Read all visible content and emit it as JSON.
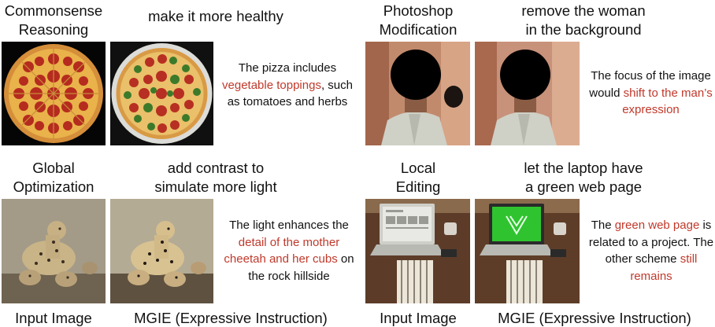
{
  "panels": [
    {
      "task": [
        "Commonsense",
        "Reasoning"
      ],
      "instruction": [
        "make it more healthy"
      ],
      "explanation": [
        "The pizza includes ",
        "vegetable toppings",
        ", such as tomatoes and herbs"
      ]
    },
    {
      "task": [
        "Photoshop",
        "Modification"
      ],
      "instruction": [
        "remove the woman",
        "in the background"
      ],
      "explanation": [
        "The focus of the image would ",
        "shift to the man’s expression",
        ""
      ]
    },
    {
      "task": [
        "Global",
        "Optimization"
      ],
      "instruction": [
        "add contrast to",
        "simulate more light"
      ],
      "explanation": [
        "The light enhances the ",
        "detail of the mother cheetah and her cubs",
        " on the rock hillside"
      ]
    },
    {
      "task": [
        "Local",
        "Editing"
      ],
      "instruction": [
        "let the laptop have",
        "a green web page"
      ],
      "explanation": [
        "The ",
        "green web page",
        " is related to a project. The other scheme ",
        "still remains",
        ""
      ]
    }
  ],
  "footer": {
    "input_label": "Input Image",
    "output_label": "MGIE (Expressive Instruction)"
  },
  "colors": {
    "highlight": "#c0392b",
    "text": "#111111"
  }
}
